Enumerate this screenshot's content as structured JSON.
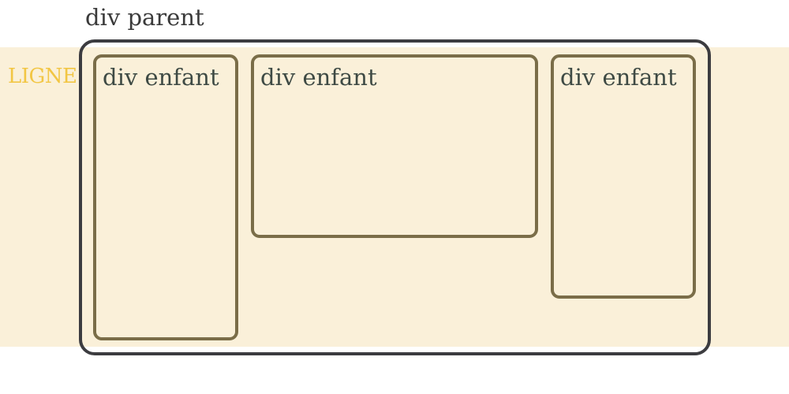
{
  "parent": {
    "label": "div parent",
    "border_color": "#3c3c40"
  },
  "line": {
    "label": "LIGNE",
    "band_color": "#faf0d9",
    "label_color": "#f2c644"
  },
  "children": [
    {
      "label": "div enfant"
    },
    {
      "label": "div enfant"
    },
    {
      "label": "div enfant"
    }
  ],
  "child_border_color": "#7a6d48"
}
